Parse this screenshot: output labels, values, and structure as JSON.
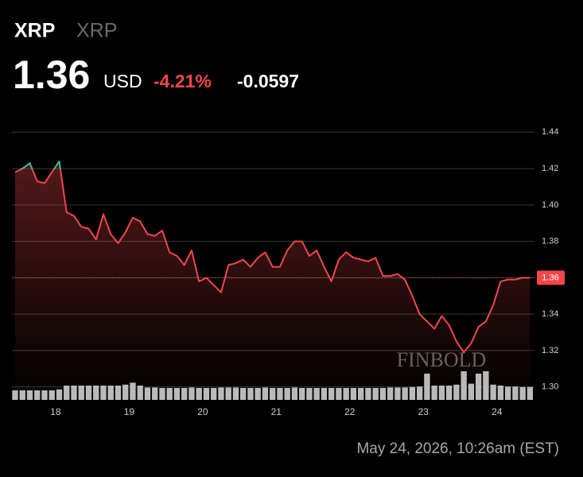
{
  "header": {
    "symbol": "XRP",
    "name": "XRP",
    "price": "1.36",
    "currency": "USD",
    "change_pct": "-4.21%",
    "change": "-0.0597"
  },
  "chart_data": {
    "type": "line",
    "x": [
      17.45,
      17.55,
      17.65,
      17.75,
      17.85,
      17.95,
      18.05,
      18.15,
      18.25,
      18.35,
      18.45,
      18.55,
      18.65,
      18.75,
      18.85,
      18.95,
      19.05,
      19.15,
      19.25,
      19.35,
      19.45,
      19.55,
      19.65,
      19.75,
      19.85,
      19.95,
      20.05,
      20.15,
      20.25,
      20.35,
      20.45,
      20.55,
      20.65,
      20.75,
      20.85,
      20.95,
      21.05,
      21.15,
      21.25,
      21.35,
      21.45,
      21.55,
      21.65,
      21.75,
      21.85,
      21.95,
      22.05,
      22.15,
      22.25,
      22.35,
      22.45,
      22.55,
      22.65,
      22.75,
      22.85,
      22.95,
      23.05,
      23.15,
      23.25,
      23.35,
      23.45,
      23.55,
      23.65,
      23.75,
      23.85,
      23.95,
      24.05,
      24.15,
      24.25,
      24.35,
      24.45
    ],
    "values": [
      1.418,
      1.42,
      1.423,
      1.413,
      1.412,
      1.418,
      1.424,
      1.396,
      1.394,
      1.388,
      1.387,
      1.381,
      1.395,
      1.384,
      1.379,
      1.385,
      1.393,
      1.391,
      1.384,
      1.383,
      1.386,
      1.374,
      1.372,
      1.367,
      1.375,
      1.358,
      1.36,
      1.356,
      1.352,
      1.367,
      1.368,
      1.37,
      1.366,
      1.371,
      1.374,
      1.366,
      1.366,
      1.375,
      1.38,
      1.38,
      1.372,
      1.375,
      1.366,
      1.358,
      1.37,
      1.374,
      1.371,
      1.37,
      1.369,
      1.371,
      1.361,
      1.361,
      1.362,
      1.359,
      1.35,
      1.34,
      1.336,
      1.332,
      1.339,
      1.334,
      1.325,
      1.319,
      1.324,
      1.333,
      1.336,
      1.345,
      1.358,
      1.359,
      1.359,
      1.36,
      1.36
    ],
    "volume": [
      2,
      2,
      2,
      2,
      2,
      2,
      2.2,
      3,
      3,
      3,
      3,
      3,
      3,
      3,
      3,
      3.2,
      3.6,
      3,
      2.6,
      2.6,
      2.5,
      2.5,
      2.5,
      2.5,
      2.6,
      2.5,
      2.5,
      2.5,
      2.6,
      2.6,
      2.6,
      2.5,
      2.5,
      2.5,
      2.6,
      2.5,
      2.5,
      2.5,
      2.6,
      2.5,
      2.5,
      2.5,
      2.5,
      2.5,
      2.5,
      2.5,
      2.5,
      2.5,
      2.5,
      2.5,
      2.5,
      2.6,
      2.6,
      2.6,
      2.7,
      2.8,
      5.5,
      3,
      3,
      3,
      3.2,
      6,
      3.4,
      5.5,
      6,
      3.2,
      3,
      2.8,
      2.8,
      2.7,
      2.7
    ],
    "up_color": "#3fb8a0",
    "down_color": "#f0474a",
    "baseline": 1.4197,
    "xlim": [
      17.45,
      24.5
    ],
    "xticks": [
      18,
      19,
      20,
      21,
      22,
      23,
      24
    ],
    "ylim": [
      1.292,
      1.448
    ],
    "yticks": [
      {
        "value": 1.3,
        "label": "1.30"
      },
      1.32,
      1.34,
      1.36,
      1.38,
      {
        "value": 1.4,
        "label": "1.40"
      },
      1.42,
      1.44
    ],
    "grid": true,
    "last_label": "1.36",
    "watermark": "FINBOLD"
  },
  "footer": {
    "timestamp": "May 24, 2026, 10:26am (EST)"
  }
}
